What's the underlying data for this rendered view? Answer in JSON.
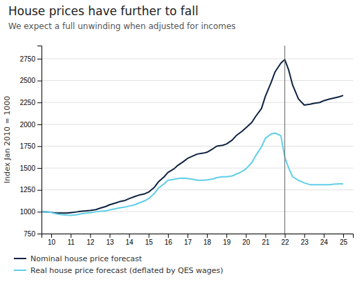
{
  "chart_data": {
    "type": "line",
    "title": "House prices have further to fall",
    "subtitle": "We expect a full unwinding when adjusted for incomes",
    "ylabel": "Index Jan 2010 = 1000",
    "x": [
      9.5,
      10.0,
      10.1,
      10.3,
      10.5,
      10.8,
      11.0,
      11.3,
      11.5,
      11.8,
      12.0,
      12.3,
      12.5,
      12.8,
      13.0,
      13.3,
      13.5,
      13.8,
      14.0,
      14.3,
      14.5,
      14.8,
      15.0,
      15.3,
      15.5,
      15.8,
      16.0,
      16.3,
      16.5,
      16.8,
      17.0,
      17.3,
      17.5,
      17.8,
      18.0,
      18.3,
      18.5,
      18.8,
      19.0,
      19.3,
      19.5,
      19.8,
      20.0,
      20.3,
      20.5,
      20.8,
      21.0,
      21.3,
      21.5,
      21.8,
      22.0,
      22.2,
      22.4,
      22.7,
      23.0,
      23.3,
      23.5,
      23.8,
      24.0,
      24.3,
      24.5,
      24.8,
      25.0
    ],
    "series": [
      {
        "name": "Nominal house price forecast",
        "color": "#0d2240",
        "values": [
          1000,
          995,
          990,
          985,
          985,
          985,
          990,
          998,
          1005,
          1010,
          1015,
          1025,
          1040,
          1060,
          1080,
          1100,
          1115,
          1130,
          1150,
          1175,
          1190,
          1205,
          1225,
          1280,
          1340,
          1400,
          1450,
          1490,
          1530,
          1575,
          1610,
          1640,
          1660,
          1670,
          1680,
          1720,
          1750,
          1760,
          1775,
          1820,
          1870,
          1920,
          1960,
          2020,
          2090,
          2180,
          2320,
          2480,
          2600,
          2700,
          2740,
          2620,
          2450,
          2290,
          2220,
          2230,
          2240,
          2250,
          2270,
          2290,
          2300,
          2315,
          2330
        ]
      },
      {
        "name": "Real house price forecast (deflated by QES wages)",
        "color": "#5ecfe8",
        "values": [
          1000,
          995,
          985,
          975,
          968,
          962,
          960,
          965,
          975,
          985,
          990,
          1000,
          1005,
          1010,
          1020,
          1035,
          1045,
          1055,
          1065,
          1080,
          1100,
          1125,
          1150,
          1210,
          1270,
          1320,
          1360,
          1370,
          1380,
          1385,
          1380,
          1370,
          1360,
          1360,
          1365,
          1375,
          1390,
          1400,
          1400,
          1410,
          1430,
          1460,
          1490,
          1560,
          1640,
          1740,
          1840,
          1890,
          1900,
          1870,
          1620,
          1500,
          1400,
          1360,
          1330,
          1310,
          1310,
          1310,
          1310,
          1310,
          1315,
          1320,
          1320
        ]
      }
    ],
    "vline": {
      "x": 22.0
    },
    "xlim": [
      9.5,
      25.5
    ],
    "xticks": [
      10,
      11,
      12,
      13,
      14,
      15,
      16,
      17,
      18,
      19,
      20,
      21,
      22,
      23,
      24,
      25
    ],
    "ylim": [
      750,
      2900
    ],
    "yticks": [
      750,
      1000,
      1250,
      1500,
      1750,
      2000,
      2250,
      2500,
      2750
    ],
    "grid": true,
    "legend": "bottom"
  }
}
